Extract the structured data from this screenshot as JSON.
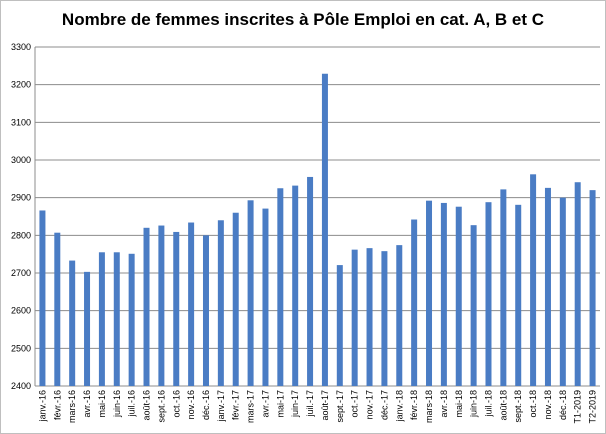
{
  "chart_data": {
    "type": "bar",
    "title": "Nombre de femmes inscrites à Pôle Emploi en cat. A, B et C",
    "xlabel": "",
    "ylabel": "",
    "ylim": [
      2400,
      3300
    ],
    "yticks": [
      2400,
      2500,
      2600,
      2700,
      2800,
      2900,
      3000,
      3100,
      3200,
      3300
    ],
    "grid": "horizontal",
    "bar_color": "#4a7cc4",
    "categories": [
      "janv.-16",
      "févr.-16",
      "mars-16",
      "avr.-16",
      "mai-16",
      "juin-16",
      "juil.-16",
      "août-16",
      "sept.-16",
      "oct.-16",
      "nov.-16",
      "déc.-16",
      "janv.-17",
      "févr.-17",
      "mars-17",
      "avr.-17",
      "mai-17",
      "juin-17",
      "juil.-17",
      "août-17",
      "sept.-17",
      "oct.-17",
      "nov.-17",
      "déc.-17",
      "janv.-18",
      "févr.-18",
      "mars-18",
      "avr.-18",
      "mai-18",
      "juin-18",
      "juil.-18",
      "août-18",
      "sept.-18",
      "oct.-18",
      "nov.-18",
      "déc.-18",
      "T1-2019",
      "T2-2019"
    ],
    "values": [
      2866,
      2807,
      2733,
      2703,
      2755,
      2755,
      2751,
      2820,
      2826,
      2809,
      2834,
      2800,
      2840,
      2860,
      2893,
      2871,
      2925,
      2932,
      2955,
      3229,
      2721,
      2762,
      2766,
      2758,
      2774,
      2842,
      2892,
      2886,
      2876,
      2827,
      2888,
      2922,
      2881,
      2962,
      2926,
      2900,
      2941,
      2920
    ]
  }
}
